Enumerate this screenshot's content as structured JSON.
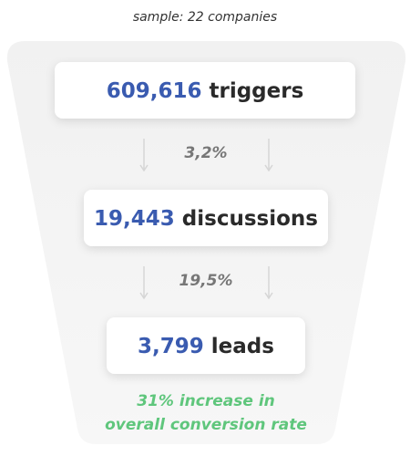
{
  "subtitle": "sample: 22 companies",
  "stages": [
    {
      "value": "609,616",
      "label": "triggers"
    },
    {
      "value": "19,443",
      "label": "discussions"
    },
    {
      "value": "3,799",
      "label": "leads"
    }
  ],
  "rates": [
    "3,2%",
    "19,5%"
  ],
  "note": [
    "31% increase in",
    "overall conversion rate"
  ]
}
